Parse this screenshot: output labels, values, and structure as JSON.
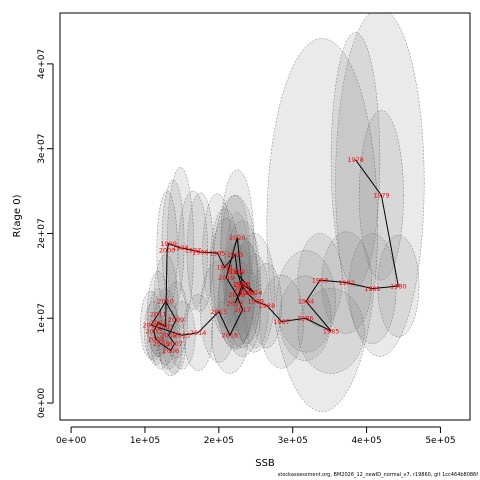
{
  "footer": "stockassessment.org, BM2026_12_newID_normal_v7, r19860, git 1cc464b8086f",
  "chart_data": {
    "type": "scatter",
    "xlabel": "SSB",
    "ylabel": "R(age 0)",
    "xlim": [
      -15000,
      540000
    ],
    "ylim": [
      -2000000,
      46000000
    ],
    "x_ticks": [
      0,
      100000,
      200000,
      300000,
      400000,
      500000
    ],
    "x_tick_labels": [
      "0e+00",
      "1e+05",
      "2e+05",
      "3e+05",
      "4e+05",
      "5e+05"
    ],
    "y_ticks": [
      0,
      10000000,
      20000000,
      30000000,
      40000000
    ],
    "y_tick_labels": [
      "0e+00",
      "1e+07",
      "2e+07",
      "3e+07",
      "4e+07"
    ],
    "line_color": "#000000",
    "label_color": "#ff0000",
    "ellipse_color": "#808080",
    "points": [
      {
        "label": "1978",
        "x": 385000,
        "y": 28700000
      },
      {
        "label": "1979",
        "x": 420000,
        "y": 24500000
      },
      {
        "label": "1980",
        "x": 443000,
        "y": 13800000
      },
      {
        "label": "1981",
        "x": 408000,
        "y": 13500000
      },
      {
        "label": "1982",
        "x": 373000,
        "y": 14200000
      },
      {
        "label": "1983",
        "x": 337000,
        "y": 14500000
      },
      {
        "label": "1984",
        "x": 318000,
        "y": 12000000
      },
      {
        "label": "1985",
        "x": 352000,
        "y": 8500000
      },
      {
        "label": "1986",
        "x": 317000,
        "y": 10000000
      },
      {
        "label": "1987",
        "x": 285000,
        "y": 9600000
      },
      {
        "label": "1988",
        "x": 265000,
        "y": 11500000
      },
      {
        "label": "1989",
        "x": 250000,
        "y": 12000000
      },
      {
        "label": "1990",
        "x": 238000,
        "y": 13000000
      },
      {
        "label": "1991",
        "x": 230000,
        "y": 14000000
      },
      {
        "label": "1992",
        "x": 225000,
        "y": 15500000
      },
      {
        "label": "1993",
        "x": 222000,
        "y": 17500000
      },
      {
        "label": "1994",
        "x": 208000,
        "y": 16000000
      },
      {
        "label": "1995",
        "x": 198000,
        "y": 17700000
      },
      {
        "label": "1996",
        "x": 175000,
        "y": 17800000
      },
      {
        "label": "1997",
        "x": 165000,
        "y": 18000000
      },
      {
        "label": "1998",
        "x": 148000,
        "y": 18300000
      },
      {
        "label": "1999",
        "x": 132000,
        "y": 18800000
      },
      {
        "label": "2000",
        "x": 130000,
        "y": 18000000
      },
      {
        "label": "2001",
        "x": 128000,
        "y": 9000000
      },
      {
        "label": "2002",
        "x": 118000,
        "y": 9500000
      },
      {
        "label": "2003",
        "x": 112000,
        "y": 8500000
      },
      {
        "label": "2004",
        "x": 115000,
        "y": 7500000
      },
      {
        "label": "2005",
        "x": 122000,
        "y": 7000000
      },
      {
        "label": "2006",
        "x": 135000,
        "y": 6200000
      },
      {
        "label": "2007",
        "x": 140000,
        "y": 7000000
      },
      {
        "label": "2008",
        "x": 132000,
        "y": 8000000
      },
      {
        "label": "2009",
        "x": 142000,
        "y": 9800000
      },
      {
        "label": "2010",
        "x": 128000,
        "y": 12000000
      },
      {
        "label": "2011",
        "x": 118000,
        "y": 10500000
      },
      {
        "label": "2012",
        "x": 108000,
        "y": 9200000
      },
      {
        "label": "2013",
        "x": 150000,
        "y": 8000000
      },
      {
        "label": "2014",
        "x": 172000,
        "y": 8300000
      },
      {
        "label": "2015",
        "x": 200000,
        "y": 10800000
      },
      {
        "label": "2016",
        "x": 215000,
        "y": 8000000
      },
      {
        "label": "2017",
        "x": 232000,
        "y": 11000000
      },
      {
        "label": "2018",
        "x": 224000,
        "y": 12800000
      },
      {
        "label": "2019",
        "x": 210000,
        "y": 14800000
      },
      {
        "label": "2020",
        "x": 225000,
        "y": 19500000
      },
      {
        "label": "2021",
        "x": 232000,
        "y": 13500000
      },
      {
        "label": "2022",
        "x": 222000,
        "y": 11800000
      },
      {
        "label": "2023",
        "x": 232000,
        "y": 14000000
      },
      {
        "label": "2024",
        "x": 248000,
        "y": 13000000
      },
      {
        "label": "2025",
        "x": 222000,
        "y": 15500000
      }
    ],
    "ellipses": [
      {
        "cx": 418000,
        "cy": 26000000,
        "rx": 60000,
        "ry": 20500000
      },
      {
        "cx": 385000,
        "cy": 28700000,
        "rx": 33000,
        "ry": 15000000
      },
      {
        "cx": 420000,
        "cy": 24500000,
        "rx": 30000,
        "ry": 10000000
      },
      {
        "cx": 443000,
        "cy": 13800000,
        "rx": 28000,
        "ry": 6000000
      },
      {
        "cx": 408000,
        "cy": 13500000,
        "rx": 32000,
        "ry": 6500000
      },
      {
        "cx": 373000,
        "cy": 14200000,
        "rx": 34000,
        "ry": 6000000
      },
      {
        "cx": 337000,
        "cy": 14500000,
        "rx": 30000,
        "ry": 5500000
      },
      {
        "cx": 318000,
        "cy": 12000000,
        "rx": 40000,
        "ry": 6000000
      },
      {
        "cx": 352000,
        "cy": 8500000,
        "rx": 45000,
        "ry": 5000000
      },
      {
        "cx": 317000,
        "cy": 10000000,
        "rx": 35000,
        "ry": 5000000
      },
      {
        "cx": 285000,
        "cy": 9600000,
        "rx": 30000,
        "ry": 5500000
      },
      {
        "cx": 340000,
        "cy": 21000000,
        "rx": 75000,
        "ry": 22000000
      },
      {
        "cx": 265000,
        "cy": 11500000,
        "rx": 20000,
        "ry": 5000000
      },
      {
        "cx": 250000,
        "cy": 12000000,
        "rx": 18000,
        "ry": 5500000
      },
      {
        "cx": 238000,
        "cy": 13000000,
        "rx": 18000,
        "ry": 6000000
      },
      {
        "cx": 230000,
        "cy": 14000000,
        "rx": 15000,
        "ry": 6000000
      },
      {
        "cx": 225000,
        "cy": 15500000,
        "rx": 17000,
        "ry": 7000000
      },
      {
        "cx": 222000,
        "cy": 17500000,
        "rx": 20000,
        "ry": 7000000
      },
      {
        "cx": 208000,
        "cy": 16000000,
        "rx": 20000,
        "ry": 7000000
      },
      {
        "cx": 198000,
        "cy": 17700000,
        "rx": 20000,
        "ry": 7000000
      },
      {
        "cx": 175000,
        "cy": 17800000,
        "rx": 18000,
        "ry": 7000000
      },
      {
        "cx": 165000,
        "cy": 18000000,
        "rx": 20000,
        "ry": 7000000
      },
      {
        "cx": 148000,
        "cy": 18300000,
        "rx": 18000,
        "ry": 9500000
      },
      {
        "cx": 138000,
        "cy": 18800000,
        "rx": 15000,
        "ry": 7500000
      },
      {
        "cx": 130000,
        "cy": 18000000,
        "rx": 14000,
        "ry": 7000000
      },
      {
        "cx": 128000,
        "cy": 9000000,
        "rx": 16000,
        "ry": 4500000
      },
      {
        "cx": 118000,
        "cy": 9500000,
        "rx": 14000,
        "ry": 4000000
      },
      {
        "cx": 112000,
        "cy": 8500000,
        "rx": 13000,
        "ry": 3500000
      },
      {
        "cx": 115000,
        "cy": 7500000,
        "rx": 12000,
        "ry": 3000000
      },
      {
        "cx": 122000,
        "cy": 7000000,
        "rx": 14000,
        "ry": 3000000
      },
      {
        "cx": 135000,
        "cy": 6200000,
        "rx": 15000,
        "ry": 3000000
      },
      {
        "cx": 140000,
        "cy": 7000000,
        "rx": 15000,
        "ry": 3500000
      },
      {
        "cx": 132000,
        "cy": 8000000,
        "rx": 15000,
        "ry": 4000000
      },
      {
        "cx": 142000,
        "cy": 9800000,
        "rx": 16000,
        "ry": 4500000
      },
      {
        "cx": 128000,
        "cy": 12000000,
        "rx": 16000,
        "ry": 5500000
      },
      {
        "cx": 118000,
        "cy": 10500000,
        "rx": 15000,
        "ry": 5000000
      },
      {
        "cx": 108000,
        "cy": 9200000,
        "rx": 14000,
        "ry": 4000000
      },
      {
        "cx": 150000,
        "cy": 8000000,
        "rx": 18000,
        "ry": 4000000
      },
      {
        "cx": 172000,
        "cy": 8300000,
        "rx": 20000,
        "ry": 4500000
      },
      {
        "cx": 200000,
        "cy": 10800000,
        "rx": 25000,
        "ry": 6000000
      },
      {
        "cx": 215000,
        "cy": 8000000,
        "rx": 25000,
        "ry": 4500000
      },
      {
        "cx": 232000,
        "cy": 11000000,
        "rx": 25000,
        "ry": 5500000
      },
      {
        "cx": 224000,
        "cy": 12800000,
        "rx": 24000,
        "ry": 6000000
      },
      {
        "cx": 210000,
        "cy": 14800000,
        "rx": 22000,
        "ry": 7000000
      },
      {
        "cx": 225000,
        "cy": 19500000,
        "rx": 22000,
        "ry": 8000000
      },
      {
        "cx": 232000,
        "cy": 13500000,
        "rx": 22000,
        "ry": 6000000
      },
      {
        "cx": 222000,
        "cy": 11800000,
        "rx": 23000,
        "ry": 5500000
      },
      {
        "cx": 232000,
        "cy": 14000000,
        "rx": 25000,
        "ry": 7500000
      },
      {
        "cx": 248000,
        "cy": 13000000,
        "rx": 28000,
        "ry": 7000000
      },
      {
        "cx": 222000,
        "cy": 15500000,
        "rx": 30000,
        "ry": 9000000
      }
    ]
  }
}
